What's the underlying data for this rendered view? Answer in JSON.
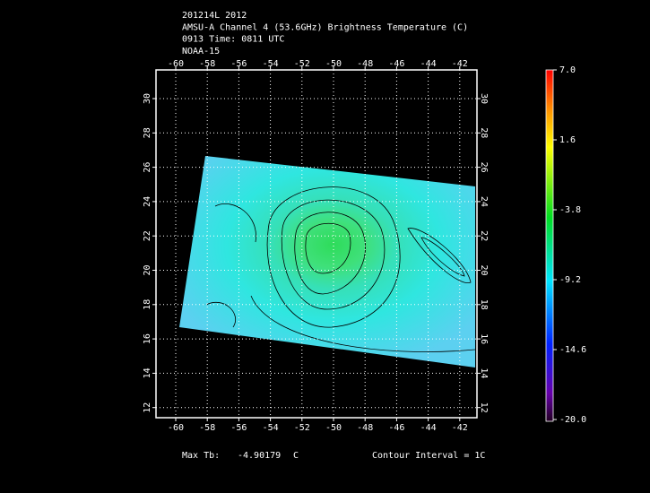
{
  "header": {
    "lines": [
      "201214L 2012",
      "AMSU-A Channel 4 (53.6GHz) Brightness Temperature (C)",
      "0913 Time: 0811 UTC",
      "NOAA-15"
    ]
  },
  "map": {
    "lon_ticks": [
      "-60",
      "-58",
      "-56",
      "-54",
      "-52",
      "-50",
      "-48",
      "-46",
      "-44",
      "-42"
    ],
    "lat_ticks": [
      "30",
      "28",
      "26",
      "24",
      "22",
      "20",
      "18",
      "16",
      "14",
      "12"
    ]
  },
  "colorbar": {
    "labels": [
      "7.0",
      "1.6",
      "-3.8",
      "-9.2",
      "-14.6",
      "-20.0"
    ]
  },
  "footer": {
    "max_tb_label": "Max Tb:",
    "max_tb_value": "-4.90179",
    "max_tb_unit": "C",
    "contour_interval": "Contour Interval = 1C"
  }
}
